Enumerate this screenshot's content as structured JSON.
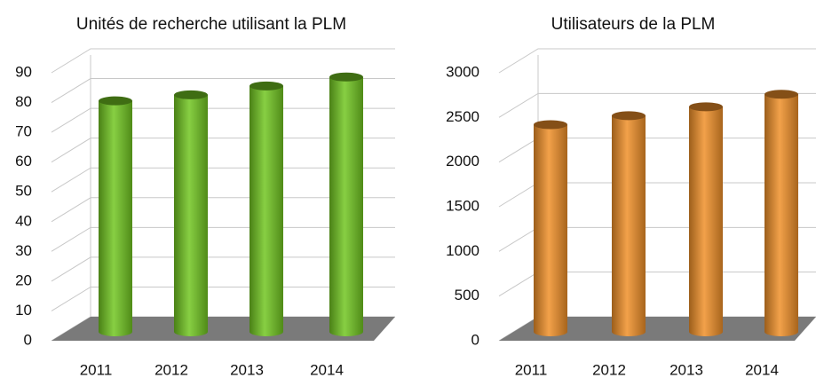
{
  "chart_data": [
    {
      "type": "bar",
      "title": "Unités de recherche utilisant la PLM",
      "categories": [
        "2011",
        "2012",
        "2013",
        "2014"
      ],
      "values": [
        77,
        79,
        82,
        85
      ],
      "color": "#72c722",
      "ylim": [
        0,
        90
      ],
      "yticks": [
        0,
        10,
        20,
        30,
        40,
        50,
        60,
        70,
        80,
        90
      ],
      "grid": true
    },
    {
      "type": "bar",
      "title": "Utilisateurs de la PLM",
      "categories": [
        "2011",
        "2012",
        "2013",
        "2014"
      ],
      "values": [
        2300,
        2400,
        2500,
        2640
      ],
      "color": "#f0902a",
      "ylim": [
        0,
        3000
      ],
      "yticks": [
        0,
        500,
        1000,
        1500,
        2000,
        2500,
        3000
      ],
      "grid": true
    }
  ]
}
